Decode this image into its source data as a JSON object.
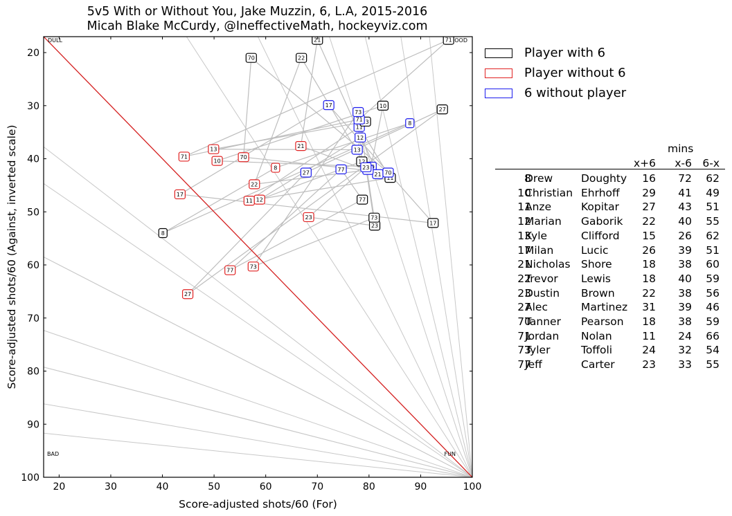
{
  "title": {
    "line1": "5v5 With or Without You, Jake Muzzin, 6, L.A, 2015-2016",
    "line2": "Micah Blake McCurdy, @IneffectiveMath, hockeyviz.com"
  },
  "legend": {
    "entries": [
      {
        "label": "Player with 6",
        "color": "#000000"
      },
      {
        "label": "Player without 6",
        "color": "#e02020"
      },
      {
        "label": "6 without player",
        "color": "#1a1aee"
      }
    ]
  },
  "table": {
    "header_mins": "mins",
    "columns": [
      "x+6",
      "x-6",
      "6-x"
    ],
    "rows": [
      {
        "num": "8",
        "first": "Drew",
        "last": "Doughty",
        "with": "16",
        "without": "72",
        "only": "62"
      },
      {
        "num": "10",
        "first": "Christian",
        "last": "Ehrhoff",
        "with": "29",
        "without": "41",
        "only": "49"
      },
      {
        "num": "11",
        "first": "Anze",
        "last": "Kopitar",
        "with": "27",
        "without": "43",
        "only": "51"
      },
      {
        "num": "12",
        "first": "Marian",
        "last": "Gaborik",
        "with": "22",
        "without": "40",
        "only": "55"
      },
      {
        "num": "13",
        "first": "Kyle",
        "last": "Clifford",
        "with": "15",
        "without": "26",
        "only": "62"
      },
      {
        "num": "17",
        "first": "Milan",
        "last": "Lucic",
        "with": "26",
        "without": "39",
        "only": "51"
      },
      {
        "num": "21",
        "first": "Nicholas",
        "last": "Shore",
        "with": "18",
        "without": "38",
        "only": "60"
      },
      {
        "num": "22",
        "first": "Trevor",
        "last": "Lewis",
        "with": "18",
        "without": "40",
        "only": "59"
      },
      {
        "num": "23",
        "first": "Dustin",
        "last": "Brown",
        "with": "22",
        "without": "38",
        "only": "56"
      },
      {
        "num": "27",
        "first": "Alec",
        "last": "Martinez",
        "with": "31",
        "without": "39",
        "only": "46"
      },
      {
        "num": "70",
        "first": "Tanner",
        "last": "Pearson",
        "with": "18",
        "without": "38",
        "only": "59"
      },
      {
        "num": "71",
        "first": "Jordan",
        "last": "Nolan",
        "with": "11",
        "without": "24",
        "only": "66"
      },
      {
        "num": "73",
        "first": "Tyler",
        "last": "Toffoli",
        "with": "24",
        "without": "32",
        "only": "54"
      },
      {
        "num": "77",
        "first": "Jeff",
        "last": "Carter",
        "with": "23",
        "without": "33",
        "only": "55"
      }
    ]
  },
  "chart_data": {
    "type": "scatter",
    "xlabel": "Score-adjusted shots/60 (For)",
    "ylabel": "Score-adjusted shots/60 (Against, inverted scale)",
    "xlim": [
      17,
      100
    ],
    "ylim": [
      17,
      100
    ],
    "y_inverted": true,
    "xticks": [
      20,
      30,
      40,
      50,
      60,
      70,
      80,
      90,
      100
    ],
    "yticks": [
      20,
      30,
      40,
      50,
      60,
      70,
      80,
      90,
      100
    ],
    "corner_labels": {
      "top_left": "DULL",
      "top_right": "GOOD",
      "bottom_left": "BAD",
      "bottom_right": "FUN"
    },
    "diagonal_line_color": "#d62020",
    "guide_line_color": "#c8c8c8",
    "point_colors": {
      "with": "#000000",
      "without": "#e02020",
      "only": "#1a1aee"
    },
    "players": [
      {
        "num": "8",
        "with": [
          40.1,
          54.0
        ],
        "without": [
          61.9,
          41.7
        ],
        "only": [
          87.9,
          33.3
        ]
      },
      {
        "num": "10",
        "with": [
          82.7,
          30.0
        ],
        "without": [
          50.6,
          40.4
        ],
        "only": [
          80.4,
          41.5
        ]
      },
      {
        "num": "11",
        "with": [
          84.1,
          43.6
        ],
        "without": [
          56.8,
          47.9
        ],
        "only": [
          78.1,
          34.0
        ]
      },
      {
        "num": "12",
        "with": [
          78.6,
          40.5
        ],
        "without": [
          58.8,
          47.7
        ],
        "only": [
          78.3,
          36.0
        ]
      },
      {
        "num": "13",
        "with": [
          79.3,
          33.0
        ],
        "without": [
          49.9,
          38.2
        ],
        "only": [
          77.7,
          38.3
        ]
      },
      {
        "num": "17",
        "with": [
          92.4,
          52.1
        ],
        "without": [
          43.4,
          46.7
        ],
        "only": [
          72.2,
          29.9
        ]
      },
      {
        "num": "21",
        "with": [
          70.0,
          17.6
        ],
        "without": [
          66.8,
          37.6
        ],
        "only": [
          81.7,
          42.9
        ]
      },
      {
        "num": "22",
        "with": [
          66.9,
          21.0
        ],
        "without": [
          57.8,
          44.8
        ],
        "only": [
          79.8,
          42.1
        ]
      },
      {
        "num": "23",
        "with": [
          81.1,
          52.6
        ],
        "without": [
          68.3,
          51.0
        ],
        "only": [
          79.4,
          41.6
        ]
      },
      {
        "num": "27",
        "with": [
          94.2,
          30.7
        ],
        "without": [
          44.9,
          65.5
        ],
        "only": [
          67.8,
          42.6
        ]
      },
      {
        "num": "70",
        "with": [
          57.2,
          21.0
        ],
        "without": [
          55.7,
          39.7
        ],
        "only": [
          83.7,
          42.6
        ]
      },
      {
        "num": "71",
        "with": [
          95.4,
          17.6
        ],
        "without": [
          44.2,
          39.6
        ],
        "only": [
          78.1,
          32.6
        ]
      },
      {
        "num": "73",
        "with": [
          81.0,
          51.1
        ],
        "without": [
          57.6,
          60.3
        ],
        "only": [
          77.9,
          31.2
        ]
      },
      {
        "num": "77",
        "with": [
          78.7,
          47.7
        ],
        "without": [
          53.1,
          61.0
        ],
        "only": [
          74.6,
          42.0
        ]
      }
    ]
  }
}
